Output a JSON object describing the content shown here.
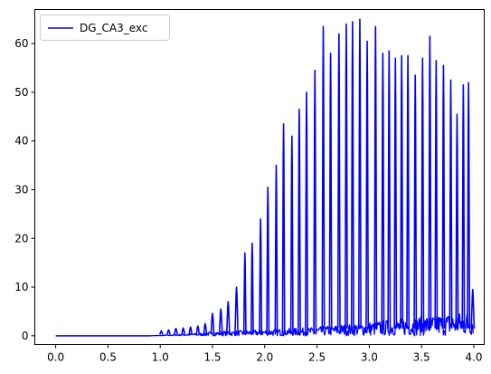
{
  "chart_data": {
    "type": "line",
    "title": "",
    "xlabel": "",
    "ylabel": "",
    "xlim": [
      -0.2,
      4.1
    ],
    "ylim": [
      -1.8,
      67
    ],
    "x_ticks": [
      0.0,
      0.5,
      1.0,
      1.5,
      2.0,
      2.5,
      3.0,
      3.5,
      4.0
    ],
    "x_tick_labels": [
      "0.0",
      "0.5",
      "1.0",
      "1.5",
      "2.0",
      "2.5",
      "3.0",
      "3.5",
      "4.0"
    ],
    "y_ticks": [
      0,
      10,
      20,
      30,
      40,
      50,
      60
    ],
    "y_tick_labels": [
      "0",
      "10",
      "20",
      "30",
      "40",
      "50",
      "60"
    ],
    "grid": false,
    "legend": {
      "placement": "top-left"
    },
    "series": [
      {
        "name": "DG_CA3_exc",
        "color": "#0000ff",
        "baseline_end_x": 0.9,
        "peaks": [
          {
            "x": 1.01,
            "y": 1.0
          },
          {
            "x": 1.08,
            "y": 1.2
          },
          {
            "x": 1.15,
            "y": 1.5
          },
          {
            "x": 1.22,
            "y": 1.6
          },
          {
            "x": 1.29,
            "y": 1.8
          },
          {
            "x": 1.36,
            "y": 2.0
          },
          {
            "x": 1.43,
            "y": 2.5
          },
          {
            "x": 1.5,
            "y": 4.6
          },
          {
            "x": 1.58,
            "y": 5.5
          },
          {
            "x": 1.65,
            "y": 7.0
          },
          {
            "x": 1.73,
            "y": 10.0
          },
          {
            "x": 1.81,
            "y": 17.0
          },
          {
            "x": 1.88,
            "y": 19.0
          },
          {
            "x": 1.96,
            "y": 24.0
          },
          {
            "x": 2.03,
            "y": 30.5
          },
          {
            "x": 2.11,
            "y": 35.0
          },
          {
            "x": 2.18,
            "y": 43.5
          },
          {
            "x": 2.26,
            "y": 41.0
          },
          {
            "x": 2.33,
            "y": 46.5
          },
          {
            "x": 2.4,
            "y": 50.0
          },
          {
            "x": 2.48,
            "y": 54.5
          },
          {
            "x": 2.56,
            "y": 63.5
          },
          {
            "x": 2.63,
            "y": 58.0
          },
          {
            "x": 2.71,
            "y": 62.0
          },
          {
            "x": 2.78,
            "y": 64.0
          },
          {
            "x": 2.84,
            "y": 64.5
          },
          {
            "x": 2.91,
            "y": 65.0
          },
          {
            "x": 2.98,
            "y": 60.5
          },
          {
            "x": 3.06,
            "y": 63.5
          },
          {
            "x": 3.13,
            "y": 58.0
          },
          {
            "x": 3.19,
            "y": 58.5
          },
          {
            "x": 3.25,
            "y": 57.0
          },
          {
            "x": 3.31,
            "y": 57.5
          },
          {
            "x": 3.37,
            "y": 57.5
          },
          {
            "x": 3.44,
            "y": 53.5
          },
          {
            "x": 3.51,
            "y": 57.0
          },
          {
            "x": 3.58,
            "y": 61.5
          },
          {
            "x": 3.64,
            "y": 56.5
          },
          {
            "x": 3.71,
            "y": 55.5
          },
          {
            "x": 3.78,
            "y": 52.5
          },
          {
            "x": 3.84,
            "y": 45.5
          },
          {
            "x": 3.9,
            "y": 51.5
          },
          {
            "x": 3.95,
            "y": 52.0
          },
          {
            "x": 3.99,
            "y": 9.5
          }
        ]
      }
    ]
  }
}
